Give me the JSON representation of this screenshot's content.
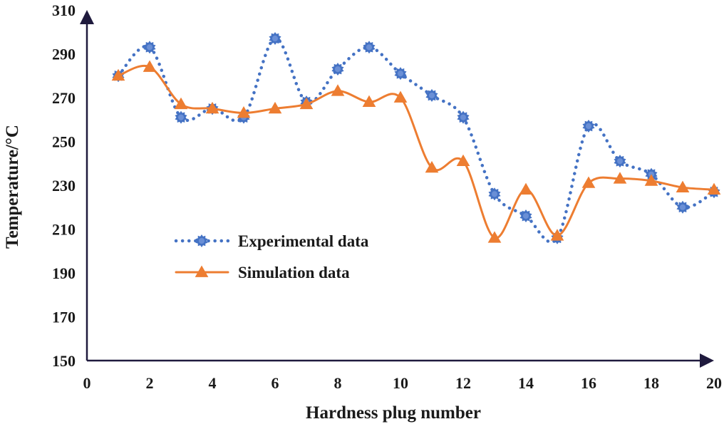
{
  "chart_data": {
    "type": "line",
    "title": "",
    "xlabel": "Hardness plug number",
    "ylabel": "Temperature/°C",
    "xlim": [
      0,
      20
    ],
    "ylim": [
      150,
      310
    ],
    "x_ticks": [
      "0",
      "2",
      "4",
      "6",
      "8",
      "10",
      "12",
      "14",
      "16",
      "18",
      "20"
    ],
    "y_ticks": [
      "150",
      "170",
      "190",
      "210",
      "230",
      "250",
      "270",
      "290",
      "310"
    ],
    "grid": false,
    "legend_position": "center-left",
    "x": [
      1,
      2,
      3,
      4,
      5,
      6,
      7,
      8,
      9,
      10,
      11,
      12,
      13,
      14,
      15,
      16,
      17,
      18,
      19,
      20
    ],
    "series": [
      {
        "name": "Experimental data",
        "color": "#4472C4",
        "line_style": "dotted",
        "marker": "star-circle",
        "values": [
          280,
          293,
          261,
          265,
          261,
          297,
          268,
          283,
          293,
          281,
          271,
          261,
          226,
          216,
          206,
          257,
          241,
          235,
          220,
          227
        ]
      },
      {
        "name": "Simulation data",
        "color": "#ED7D31",
        "line_style": "solid",
        "marker": "triangle",
        "values": [
          280,
          284,
          267,
          265,
          263,
          265,
          267,
          273,
          268,
          270,
          238,
          241,
          206,
          228,
          207,
          231,
          233,
          232,
          229,
          228
        ]
      }
    ]
  },
  "colors": {
    "axis": "#1F1A3D",
    "text": "#1a1a1a"
  }
}
